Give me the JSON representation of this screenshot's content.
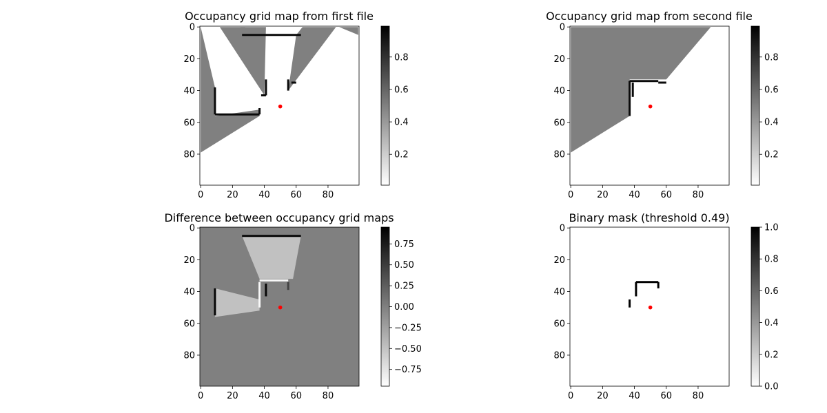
{
  "chart_data": [
    {
      "type": "heatmap",
      "id": "map1",
      "title": "Occupancy grid map from first file",
      "xlim": [
        0,
        99
      ],
      "ylim": [
        0,
        99
      ],
      "xticks": [
        0,
        20,
        40,
        60,
        80
      ],
      "yticks": [
        0,
        20,
        40,
        60,
        80
      ],
      "colorbar": {
        "min": 0.01,
        "max": 0.99,
        "ticks": [
          0.2,
          0.4,
          0.6,
          0.8
        ],
        "labels": [
          "0.2",
          "0.4",
          "0.6",
          "0.8"
        ]
      },
      "background_value": 0.01,
      "regions": [
        {
          "value": 0.5,
          "points": [
            [
              0,
              0
            ],
            [
              0,
              79
            ],
            [
              37,
              56
            ],
            [
              37,
              52
            ],
            [
              9,
              56
            ],
            [
              9,
              38
            ]
          ]
        },
        {
          "value": 0.5,
          "points": [
            [
              12,
              0
            ],
            [
              28,
              0
            ],
            [
              40,
              35
            ],
            [
              40,
              43
            ]
          ]
        },
        {
          "value": 0.5,
          "points": [
            [
              25,
              0
            ],
            [
              40,
              42
            ],
            [
              41,
              0
            ]
          ]
        },
        {
          "value": 0.5,
          "points": [
            [
              60,
              5
            ],
            [
              55,
              40
            ],
            [
              85,
              0
            ],
            [
              64,
              0
            ]
          ]
        },
        {
          "value": 0.5,
          "points": [
            [
              87,
              0
            ],
            [
              99,
              0
            ],
            [
              99,
              5
            ]
          ]
        }
      ],
      "walls": [
        {
          "value": 0.95,
          "points": [
            [
              26,
              5
            ],
            [
              63,
              5
            ]
          ]
        },
        {
          "value": 0.95,
          "points": [
            [
              9,
              38
            ],
            [
              9,
              55
            ]
          ]
        },
        {
          "value": 0.95,
          "points": [
            [
              9,
              55
            ],
            [
              37,
              55
            ]
          ]
        },
        {
          "value": 0.95,
          "points": [
            [
              37,
              51
            ],
            [
              37,
              55
            ]
          ]
        },
        {
          "value": 0.95,
          "points": [
            [
              41,
              33
            ],
            [
              41,
              43
            ]
          ]
        },
        {
          "value": 0.95,
          "points": [
            [
              38,
              43
            ],
            [
              41,
              43
            ]
          ]
        },
        {
          "value": 0.95,
          "points": [
            [
              55,
              33
            ],
            [
              55,
              40
            ]
          ]
        },
        {
          "value": 0.95,
          "points": [
            [
              57,
              35
            ],
            [
              60,
              35
            ]
          ]
        }
      ],
      "robot": {
        "x": 50,
        "y": 50
      }
    },
    {
      "type": "heatmap",
      "id": "map2",
      "title": "Occupancy grid map from second file",
      "xlim": [
        0,
        99
      ],
      "ylim": [
        0,
        99
      ],
      "xticks": [
        0,
        20,
        40,
        60,
        80
      ],
      "yticks": [
        0,
        20,
        40,
        60,
        80
      ],
      "colorbar": {
        "min": 0.01,
        "max": 0.99,
        "ticks": [
          0.2,
          0.4,
          0.6,
          0.8
        ],
        "labels": [
          "0.2",
          "0.4",
          "0.6",
          "0.8"
        ]
      },
      "background_value": 0.01,
      "regions": [
        {
          "value": 0.5,
          "points": [
            [
              0,
              0
            ],
            [
              0,
              79
            ],
            [
              37,
              56
            ],
            [
              37,
              33
            ],
            [
              60,
              33
            ],
            [
              88,
              0
            ]
          ]
        }
      ],
      "walls": [
        {
          "value": 0.95,
          "points": [
            [
              37,
              56
            ],
            [
              37,
              34
            ]
          ]
        },
        {
          "value": 0.95,
          "points": [
            [
              37,
              34
            ],
            [
              55,
              34
            ]
          ]
        },
        {
          "value": 0.95,
          "points": [
            [
              55,
              35
            ],
            [
              60,
              35
            ]
          ]
        },
        {
          "value": 0.95,
          "points": [
            [
              39,
              35
            ],
            [
              39,
              44
            ]
          ]
        }
      ],
      "robot": {
        "x": 50,
        "y": 50
      }
    },
    {
      "type": "heatmap",
      "id": "diff",
      "title": "Difference between occupancy grid maps",
      "xlim": [
        0,
        99
      ],
      "ylim": [
        0,
        99
      ],
      "xticks": [
        0,
        20,
        40,
        60,
        80
      ],
      "yticks": [
        0,
        20,
        40,
        60,
        80
      ],
      "colorbar": {
        "min": -0.95,
        "max": 0.95,
        "ticks": [
          -0.75,
          -0.5,
          -0.25,
          0,
          0.25,
          0.5,
          0.75
        ],
        "labels": [
          "−0.75",
          "−0.50",
          "−0.25",
          "0.00",
          "0.25",
          "0.50",
          "0.75"
        ]
      },
      "background_value": 0.0,
      "regions": [
        {
          "value": -0.49,
          "points": [
            [
              26,
              5
            ],
            [
              63,
              5
            ],
            [
              58,
              32
            ],
            [
              37,
              32
            ]
          ]
        },
        {
          "value": -0.49,
          "points": [
            [
              9,
              38
            ],
            [
              37,
              45
            ],
            [
              37,
              52
            ],
            [
              9,
              56
            ]
          ]
        }
      ],
      "walls": [
        {
          "value": 0.9,
          "points": [
            [
              26,
              5
            ],
            [
              63,
              5
            ]
          ]
        },
        {
          "value": 0.9,
          "points": [
            [
              9,
              38
            ],
            [
              9,
              55
            ]
          ]
        },
        {
          "value": -0.9,
          "points": [
            [
              37,
              33
            ],
            [
              55,
              33
            ]
          ]
        },
        {
          "value": -0.9,
          "points": [
            [
              37,
              34
            ],
            [
              37,
              50
            ]
          ]
        },
        {
          "value": 0.9,
          "points": [
            [
              41,
              35
            ],
            [
              41,
              43
            ]
          ]
        },
        {
          "value": 0.45,
          "points": [
            [
              55,
              34
            ],
            [
              55,
              39
            ]
          ]
        }
      ],
      "robot": {
        "x": 50,
        "y": 50
      }
    },
    {
      "type": "heatmap",
      "id": "mask",
      "title": "Binary mask (threshold 0.49)",
      "xlim": [
        0,
        99
      ],
      "ylim": [
        0,
        99
      ],
      "xticks": [
        0,
        20,
        40,
        60,
        80
      ],
      "yticks": [
        0,
        20,
        40,
        60,
        80
      ],
      "colorbar": {
        "min": 0.0,
        "max": 1.0,
        "ticks": [
          0.0,
          0.2,
          0.4,
          0.6,
          0.8,
          1.0
        ],
        "labels": [
          "0.0",
          "0.2",
          "0.4",
          "0.6",
          "0.8",
          "1.0"
        ]
      },
      "background_value": 0.0,
      "regions": [],
      "walls": [
        {
          "value": 1.0,
          "points": [
            [
              41,
              34
            ],
            [
              55,
              34
            ]
          ]
        },
        {
          "value": 1.0,
          "points": [
            [
              41,
              34
            ],
            [
              41,
              43
            ]
          ]
        },
        {
          "value": 1.0,
          "points": [
            [
              55,
              34
            ],
            [
              55,
              38
            ]
          ]
        },
        {
          "value": 1.0,
          "points": [
            [
              37,
              45
            ],
            [
              37,
              50
            ]
          ]
        }
      ],
      "robot": {
        "x": 50,
        "y": 50
      }
    }
  ]
}
